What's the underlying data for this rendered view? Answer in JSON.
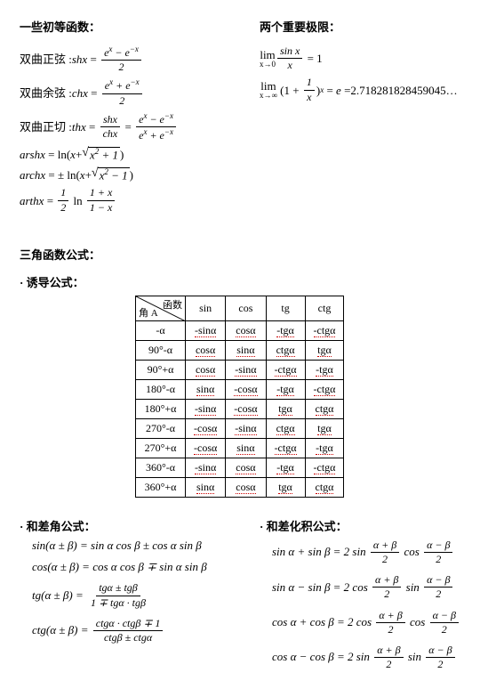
{
  "elem": {
    "heading": "一些初等函数：",
    "shx_label": "双曲正弦 : ",
    "chx_label": "双曲余弦 : ",
    "thx_label": "双曲正切 : "
  },
  "limits": {
    "heading": "两个重要极限：",
    "e_value": "2.718281828459045…"
  },
  "trig": {
    "heading": "三角函数公式：",
    "sub1": "· 诱导公式：",
    "hdr_func": "函数",
    "hdr_angle": "角 A",
    "cols": [
      "sin",
      "cos",
      "tg",
      "ctg"
    ],
    "rows": [
      {
        "a": "-α",
        "c": [
          "-sinα",
          "cosα",
          "-tgα",
          "-ctgα"
        ]
      },
      {
        "a": "90°-α",
        "c": [
          "cosα",
          "sinα",
          "ctgα",
          "tgα"
        ]
      },
      {
        "a": "90°+α",
        "c": [
          "cosα",
          "-sinα",
          "-ctgα",
          "-tgα"
        ]
      },
      {
        "a": "180°-α",
        "c": [
          "sinα",
          "-cosα",
          "-tgα",
          "-ctgα"
        ]
      },
      {
        "a": "180°+α",
        "c": [
          "-sinα",
          "-cosα",
          "tgα",
          "ctgα"
        ]
      },
      {
        "a": "270°-α",
        "c": [
          "-cosα",
          "-sinα",
          "ctgα",
          "tgα"
        ]
      },
      {
        "a": "270°+α",
        "c": [
          "-cosα",
          "sinα",
          "-ctgα",
          "-tgα"
        ]
      },
      {
        "a": "360°-α",
        "c": [
          "-sinα",
          "cosα",
          "-tgα",
          "-ctgα"
        ]
      },
      {
        "a": "360°+α",
        "c": [
          "sinα",
          "cosα",
          "tgα",
          "ctgα"
        ]
      }
    ]
  },
  "sumdiff": {
    "heading": "· 和差角公式："
  },
  "sumprod": {
    "heading": "· 和差化积公式："
  }
}
